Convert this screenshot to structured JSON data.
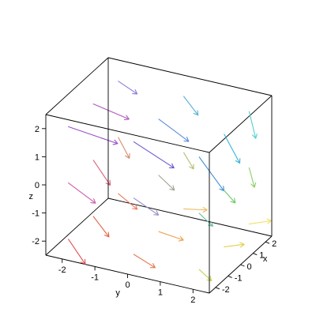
{
  "chart_data": {
    "type": "vectorfield3d",
    "title": "",
    "axes": {
      "x": {
        "label": "x",
        "range": [
          -2.5,
          2.5
        ],
        "ticks": [
          -2,
          -1,
          0,
          1,
          2
        ],
        "tick_labels": [
          "-2",
          "-1",
          "0",
          "1",
          "2"
        ]
      },
      "y": {
        "label": "y",
        "range": [
          -2.5,
          2.5
        ],
        "ticks": [
          -2,
          -1,
          0,
          1,
          2
        ],
        "tick_labels": [
          "-2",
          "-1",
          "0",
          "1",
          "2"
        ]
      },
      "z": {
        "label": "z",
        "range": [
          -2.5,
          2.5
        ],
        "ticks": [
          -2,
          -1,
          0,
          1,
          2
        ],
        "tick_labels": [
          "-2",
          "-1",
          "0",
          "1",
          "2"
        ]
      }
    },
    "box": "full",
    "grid": false,
    "legend": "none",
    "color_scheme": "rainbow by position",
    "vectors": [
      {
        "x": -2,
        "y": -2,
        "z": 2,
        "u": 0.8,
        "v": 1.2,
        "w": -0.6,
        "color": "#9b4fc9"
      },
      {
        "x": -2,
        "y": 0,
        "z": 2,
        "u": 0.6,
        "v": 1.0,
        "w": -0.9,
        "color": "#6a5acd"
      },
      {
        "x": -2,
        "y": 2,
        "z": 2,
        "u": 0.4,
        "v": 0.6,
        "w": -1.2,
        "color": "#3f8fd2"
      },
      {
        "x": 0,
        "y": -2,
        "z": 2,
        "u": 0.5,
        "v": 0.9,
        "w": -0.5,
        "color": "#b05cc0"
      },
      {
        "x": 0,
        "y": 0,
        "z": 2,
        "u": 0.3,
        "v": 0.8,
        "w": -0.7,
        "color": "#5f8ce0"
      },
      {
        "x": 0,
        "y": 2,
        "z": 2,
        "u": 0.2,
        "v": 0.4,
        "w": -1.0,
        "color": "#3cb6d8"
      },
      {
        "x": 2,
        "y": -2,
        "z": 2,
        "u": 0.2,
        "v": 0.5,
        "w": -0.4,
        "color": "#8e7ad8"
      },
      {
        "x": 2,
        "y": 0,
        "z": 2,
        "u": 0.1,
        "v": 0.4,
        "w": -0.6,
        "color": "#58b0d6"
      },
      {
        "x": 2,
        "y": 2,
        "z": 2,
        "u": 0.0,
        "v": 0.2,
        "w": -0.9,
        "color": "#4fd0d0"
      },
      {
        "x": -2,
        "y": -2,
        "z": 0,
        "u": 0.6,
        "v": 0.6,
        "w": -0.8,
        "color": "#d05ca8"
      },
      {
        "x": -2,
        "y": 0,
        "z": 0,
        "u": 0.4,
        "v": 0.6,
        "w": -0.6,
        "color": "#9a8bc6"
      },
      {
        "x": -2,
        "y": 2,
        "z": 0,
        "u": 0.3,
        "v": 0.3,
        "w": -0.5,
        "color": "#62c09a"
      },
      {
        "x": 0,
        "y": -2,
        "z": 0,
        "u": 0.3,
        "v": 0.4,
        "w": -0.9,
        "color": "#d86078"
      },
      {
        "x": 0,
        "y": 0,
        "z": 0,
        "u": 0.2,
        "v": 0.4,
        "w": -0.5,
        "color": "#a0a090"
      },
      {
        "x": 0,
        "y": 2,
        "z": 0,
        "u": 0.1,
        "v": 0.3,
        "w": -0.4,
        "color": "#6cc86a"
      },
      {
        "x": 2,
        "y": -2,
        "z": 0,
        "u": 0.1,
        "v": 0.3,
        "w": -0.7,
        "color": "#d88a70"
      },
      {
        "x": 2,
        "y": 0,
        "z": 0,
        "u": 0.0,
        "v": 0.3,
        "w": -0.5,
        "color": "#b0c070"
      },
      {
        "x": 2,
        "y": 2,
        "z": 0,
        "u": -0.1,
        "v": 0.2,
        "w": -0.6,
        "color": "#88d060"
      },
      {
        "x": -2,
        "y": -2,
        "z": -2,
        "u": 0.3,
        "v": 0.4,
        "w": -0.9,
        "color": "#e05050"
      },
      {
        "x": -2,
        "y": 0,
        "z": -2,
        "u": 0.4,
        "v": 0.5,
        "w": -0.5,
        "color": "#e07a4a"
      },
      {
        "x": -2,
        "y": 2,
        "z": -2,
        "u": 0.2,
        "v": 0.3,
        "w": -0.4,
        "color": "#c8d050"
      },
      {
        "x": 0,
        "y": -2,
        "z": -2,
        "u": 0.2,
        "v": 0.4,
        "w": -0.7,
        "color": "#e8604a"
      },
      {
        "x": 0,
        "y": 0,
        "z": -2,
        "u": 0.4,
        "v": 0.6,
        "w": -0.3,
        "color": "#f0a050"
      },
      {
        "x": 0,
        "y": 2,
        "z": -2,
        "u": 0.3,
        "v": 0.5,
        "w": 0.1,
        "color": "#e0d048"
      },
      {
        "x": 2,
        "y": -2,
        "z": -2,
        "u": 0.2,
        "v": 0.5,
        "w": -0.5,
        "color": "#ec7a5a"
      },
      {
        "x": 2,
        "y": 0,
        "z": -2,
        "u": 0.3,
        "v": 0.6,
        "w": 0.0,
        "color": "#f0b860"
      },
      {
        "x": 2,
        "y": 2,
        "z": -2,
        "u": 0.2,
        "v": 0.6,
        "w": 0.2,
        "color": "#f0e060"
      }
    ]
  }
}
